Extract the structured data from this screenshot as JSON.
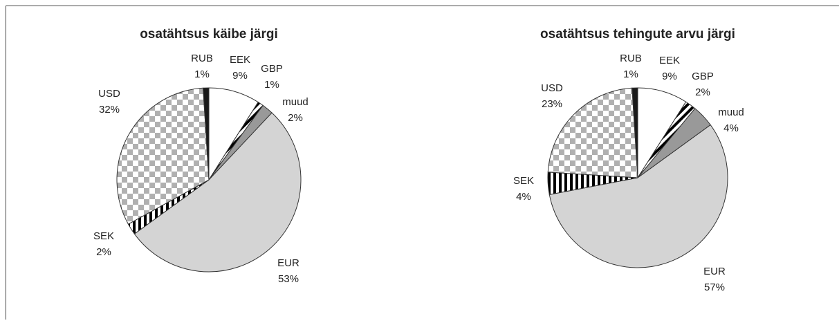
{
  "chart_data": [
    {
      "type": "pie",
      "title": "osatähtsus käibe järgi",
      "categories": [
        "EEK",
        "GBP",
        "muud",
        "EUR",
        "SEK",
        "USD",
        "RUB"
      ],
      "values": [
        9,
        1,
        2,
        53,
        2,
        32,
        1
      ],
      "value_labels": [
        "9%",
        "1%",
        "2%",
        "53%",
        "2%",
        "32%",
        "1%"
      ],
      "colors": [
        "#ffffff",
        "#000000",
        "#999999",
        "#d4d4d4",
        "#000000",
        "#b0b0b0",
        "#1a1a1a"
      ],
      "patterns": [
        null,
        "diagonal",
        null,
        null,
        "vertical",
        "checker",
        null
      ]
    },
    {
      "type": "pie",
      "title": "osatähtsus tehingute arvu järgi",
      "categories": [
        "EEK",
        "GBP",
        "muud",
        "EUR",
        "SEK",
        "USD",
        "RUB"
      ],
      "values": [
        9,
        2,
        4,
        57,
        4,
        23,
        1
      ],
      "value_labels": [
        "9%",
        "2%",
        "4%",
        "57%",
        "4%",
        "23%",
        "1%"
      ],
      "colors": [
        "#ffffff",
        "#000000",
        "#999999",
        "#d4d4d4",
        "#000000",
        "#b0b0b0",
        "#1a1a1a"
      ],
      "patterns": [
        null,
        "diagonal",
        null,
        null,
        "vertical",
        "checker",
        null
      ]
    }
  ]
}
